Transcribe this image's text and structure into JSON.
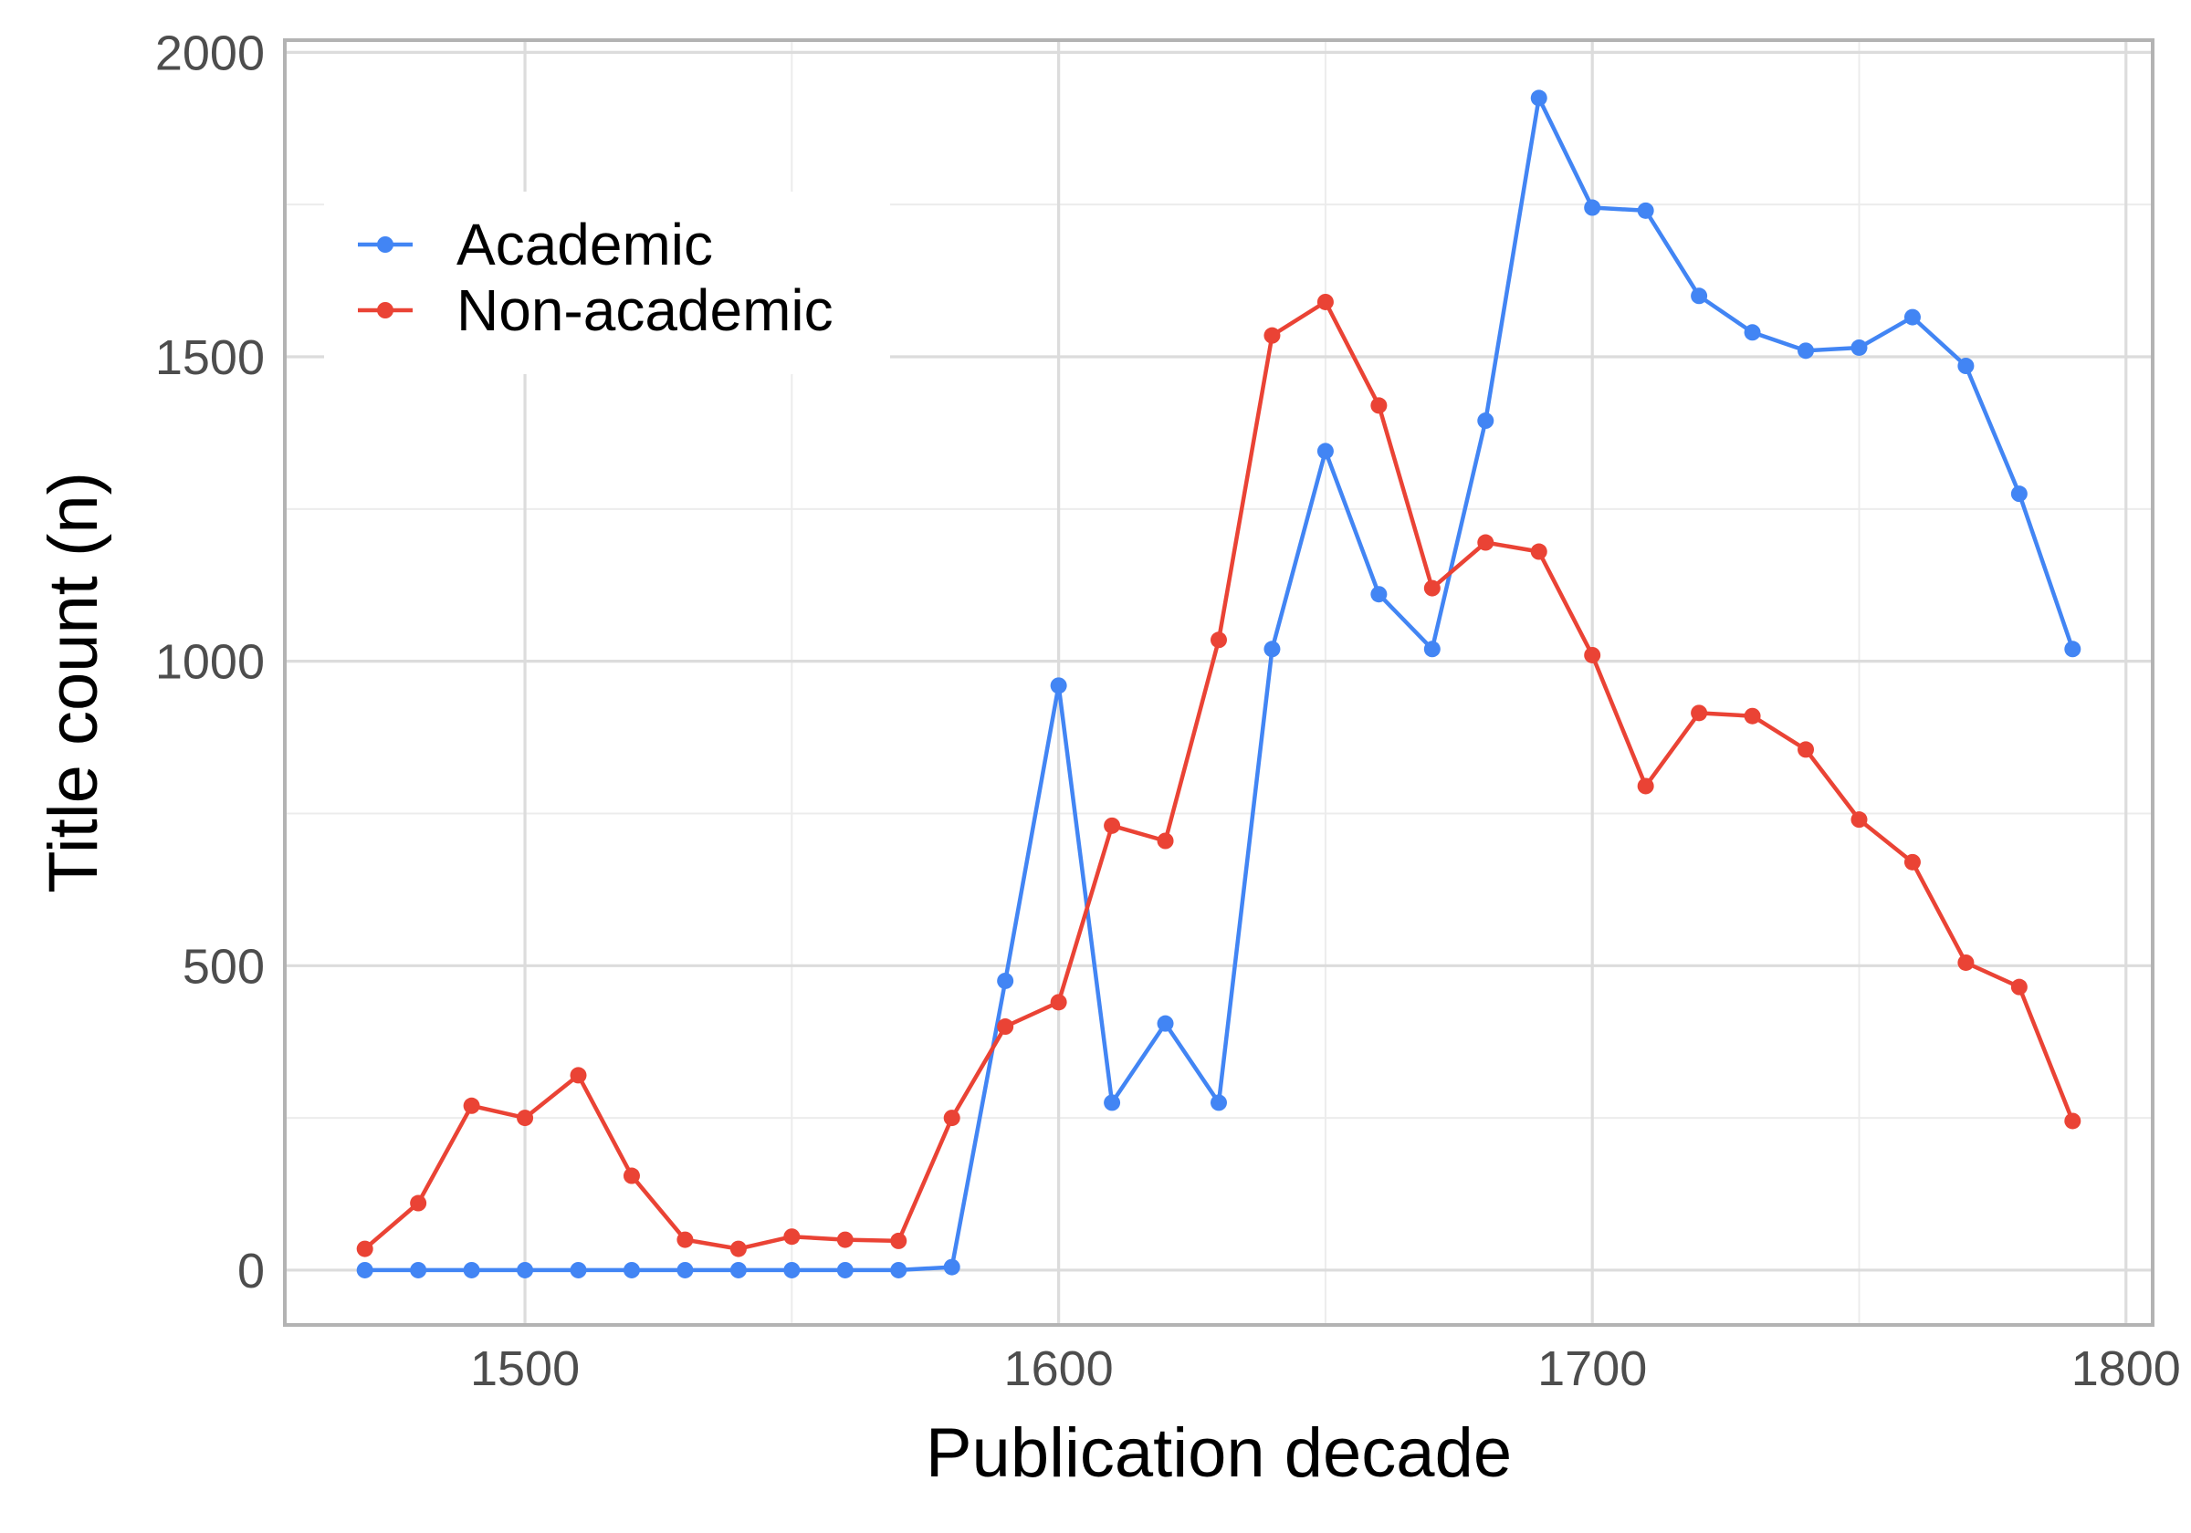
{
  "chart_data": {
    "type": "line",
    "title": "",
    "xlabel": "Publication decade",
    "ylabel": "Title count (n)",
    "xlim": [
      1455,
      1805
    ],
    "ylim": [
      -90,
      2020
    ],
    "x_ticks": [
      1500,
      1600,
      1700,
      1800
    ],
    "y_ticks": [
      0,
      500,
      1000,
      1500,
      2000
    ],
    "grid": true,
    "legend_position": "top-left",
    "x": [
      1470,
      1480,
      1490,
      1500,
      1510,
      1520,
      1530,
      1540,
      1550,
      1560,
      1570,
      1580,
      1590,
      1600,
      1610,
      1620,
      1630,
      1640,
      1650,
      1660,
      1670,
      1680,
      1690,
      1700,
      1710,
      1720,
      1730,
      1740,
      1750,
      1760,
      1770,
      1780,
      1790
    ],
    "series": [
      {
        "name": "Academic",
        "color": "#4285f4",
        "values": [
          0,
          0,
          0,
          0,
          0,
          0,
          0,
          0,
          0,
          0,
          0,
          5,
          475,
          960,
          275,
          405,
          275,
          1020,
          1345,
          1110,
          1020,
          1395,
          1925,
          1745,
          1740,
          1600,
          1540,
          1510,
          1515,
          1565,
          1485,
          1275,
          1020
        ]
      },
      {
        "name": "Non-academic",
        "color": "#ea4335",
        "values": [
          35,
          110,
          270,
          250,
          320,
          155,
          50,
          35,
          55,
          50,
          48,
          250,
          400,
          440,
          730,
          705,
          1035,
          1535,
          1590,
          1420,
          1120,
          1195,
          1180,
          1010,
          795,
          915,
          910,
          855,
          740,
          670,
          505,
          465,
          245
        ]
      }
    ]
  }
}
